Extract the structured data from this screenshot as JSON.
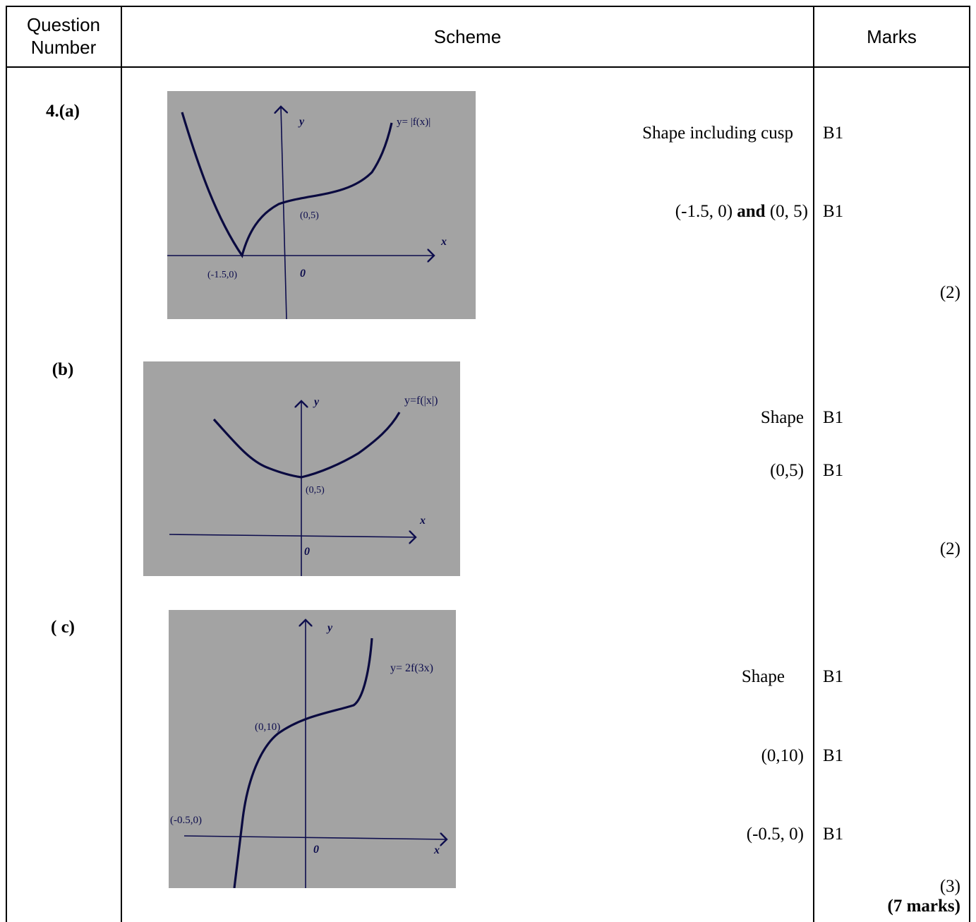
{
  "header": {
    "question_number": "Question Number",
    "scheme": "Scheme",
    "marks": "Marks"
  },
  "parts": [
    {
      "label": "4.(a)",
      "graph": {
        "y_label": "y",
        "x_label": "x",
        "origin": "0",
        "curve_label": "y= |f(x)|",
        "points": [
          "(0,5)",
          "(-1.5,0)"
        ]
      },
      "criteria": [
        {
          "text": "Shape including cusp",
          "mark": "B1"
        },
        {
          "text_before": "(-1.5, 0) ",
          "bold": "and",
          "text_after": " (0, 5)",
          "mark": "B1"
        }
      ],
      "subtotal": "(2)"
    },
    {
      "label": "(b)",
      "graph": {
        "y_label": "y",
        "x_label": "x",
        "origin": "0",
        "curve_label": "y=f(|x|)",
        "points": [
          "(0,5)"
        ]
      },
      "criteria": [
        {
          "text": "Shape",
          "mark": "B1"
        },
        {
          "text": "(0,5)",
          "mark": "B1"
        }
      ],
      "subtotal": "(2)"
    },
    {
      "label": "( c)",
      "graph": {
        "y_label": "y",
        "x_label": "x",
        "origin": "0",
        "curve_label": "y= 2f(3x)",
        "points": [
          "(0,10)",
          "(-0.5,0)"
        ]
      },
      "criteria": [
        {
          "text": "Shape",
          "mark": "B1"
        },
        {
          "text": "(0,10)",
          "mark": "B1"
        },
        {
          "text": "(-0.5, 0)",
          "mark": "B1"
        }
      ],
      "subtotal": "(3)",
      "total": "(7 marks)"
    }
  ],
  "colors": {
    "graph_background": "#a3a3a3",
    "graph_ink": "#0d0d4d",
    "border": "#000000"
  }
}
